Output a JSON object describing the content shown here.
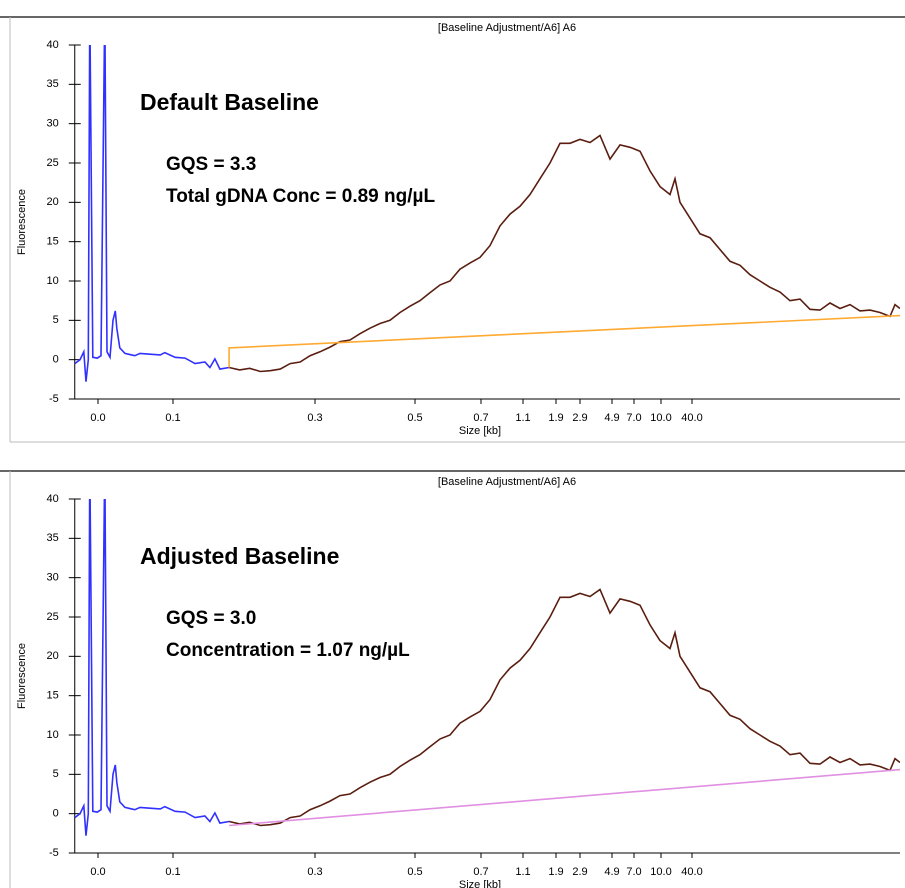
{
  "chart_data": [
    {
      "type": "line",
      "title": "[Baseline Adjustment/A6] A6",
      "xlabel": "Size [kb]",
      "ylabel": "Fluorescence",
      "annotations": [
        "Default Baseline",
        "GQS = 3.3",
        "Total gDNA Conc = 0.89 ng/µL"
      ],
      "xlim": [
        -0.031,
        241.3
      ],
      "ylim": [
        -5,
        40
      ],
      "xticks": [
        {
          "value": 0,
          "label": "0.0"
        },
        0.1,
        0.3,
        0.5,
        0.7,
        1.1,
        1.9,
        2.9,
        4.9,
        {
          "value": 7,
          "label": "7.0"
        },
        {
          "value": 10,
          "label": "10.0"
        },
        {
          "value": 40,
          "label": "40.0"
        }
      ],
      "yticks": [
        -5,
        0,
        5,
        10,
        15,
        20,
        25,
        30,
        35,
        40
      ],
      "series": [
        {
          "color": "#3030ff",
          "x": [
            -0.031,
            -0.024,
            -0.019,
            -0.016,
            -0.013,
            -0.011,
            -0.007,
            -0.001,
            0.004,
            0.009,
            0.012,
            0.016,
            0.02,
            0.023,
            0.025,
            0.029,
            0.036,
            0.049,
            0.056,
            0.069,
            0.083,
            0.089,
            0.103,
            0.117,
            0.131,
            0.145,
            0.152,
            0.159,
            0.166,
            0.179
          ],
          "values": [
            -0.5,
            0,
            1,
            -2.8,
            0,
            45,
            0.3,
            0.2,
            0.5,
            45,
            1,
            0.3,
            5,
            6.2,
            4,
            1.5,
            0.8,
            0.5,
            0.8,
            0.7,
            0.6,
            0.9,
            0.3,
            0.2,
            -0.5,
            -0.3,
            -1,
            0.1,
            -1.2,
            -1
          ]
        },
        {
          "color": "#5a1e10",
          "x": [
            0.179,
            0.194,
            0.208,
            0.223,
            0.237,
            0.251,
            0.265,
            0.279,
            0.293,
            0.31,
            0.33,
            0.35,
            0.37,
            0.39,
            0.41,
            0.43,
            0.45,
            0.47,
            0.49,
            0.515,
            0.545,
            0.576,
            0.606,
            0.636,
            0.667,
            0.697,
            0.786,
            0.881,
            0.976,
            1.071,
            1.27,
            1.512,
            1.755,
            2.067,
            2.483,
            2.9,
            3.525,
            4.15,
            4.775,
            5.664,
            6.618,
            7.667,
            8.778,
            9.889,
            18.71,
            23.55,
            28.39,
            38.06,
            47.74,
            57.42,
            67.1,
            76.77,
            86.45,
            96.13,
            105.8,
            115.5,
            125.2,
            134.8,
            144.5,
            154.2,
            163.9,
            173.5,
            183.2,
            192.9,
            202.6,
            212.3,
            221.9,
            231.6,
            236.5,
            241.3
          ],
          "values": [
            -1,
            -1.3,
            -1.1,
            -1.5,
            -1.4,
            -1.2,
            -0.5,
            -0.3,
            0.5,
            1,
            1.6,
            2.3,
            2.5,
            3.3,
            4,
            4.6,
            5,
            6,
            6.8,
            7.5,
            8.5,
            9.5,
            10,
            11.5,
            12.3,
            13,
            14.5,
            17,
            18.5,
            19.5,
            21,
            23,
            25,
            27.5,
            27.5,
            28,
            27.6,
            28.5,
            25.5,
            27.3,
            27,
            26.5,
            24,
            22,
            21,
            23,
            20,
            18,
            16,
            15.5,
            14,
            12.5,
            12,
            10.8,
            10,
            9.2,
            8.6,
            7.5,
            7.7,
            6.4,
            6.3,
            7.2,
            6.5,
            7,
            6.2,
            6.3,
            6,
            5.5,
            7,
            6.5
          ]
        },
        {
          "color": "#ffaa33",
          "x": [
            0.179,
            0.179,
            241.3
          ],
          "values": [
            -1,
            1.5,
            5.6
          ]
        }
      ]
    },
    {
      "type": "line",
      "title": "[Baseline Adjustment/A6] A6",
      "xlabel": "Size [kb]",
      "ylabel": "Fluorescence",
      "annotations": [
        "Adjusted Baseline",
        "GQS = 3.0",
        "Concentration = 1.07 ng/µL"
      ],
      "xlim": [
        -0.031,
        241.3
      ],
      "ylim": [
        -5,
        40
      ],
      "xticks": [
        {
          "value": 0,
          "label": "0.0"
        },
        0.1,
        0.3,
        0.5,
        0.7,
        1.1,
        1.9,
        2.9,
        4.9,
        {
          "value": 7,
          "label": "7.0"
        },
        {
          "value": 10,
          "label": "10.0"
        },
        {
          "value": 40,
          "label": "40.0"
        }
      ],
      "yticks": [
        -5,
        0,
        5,
        10,
        15,
        20,
        25,
        30,
        35,
        40
      ],
      "series": [
        {
          "color": "#3030ff",
          "x": [
            -0.031,
            -0.024,
            -0.019,
            -0.016,
            -0.013,
            -0.011,
            -0.007,
            -0.001,
            0.004,
            0.009,
            0.012,
            0.016,
            0.02,
            0.023,
            0.025,
            0.029,
            0.036,
            0.049,
            0.056,
            0.069,
            0.083,
            0.089,
            0.103,
            0.117,
            0.131,
            0.145,
            0.152,
            0.159,
            0.166,
            0.179
          ],
          "values": [
            -0.5,
            0,
            1,
            -2.8,
            0,
            45,
            0.3,
            0.2,
            0.5,
            45,
            1,
            0.3,
            5,
            6.2,
            4,
            1.5,
            0.8,
            0.5,
            0.8,
            0.7,
            0.6,
            0.9,
            0.3,
            0.2,
            -0.5,
            -0.3,
            -1,
            0.1,
            -1.2,
            -1
          ]
        },
        {
          "color": "#5a1e10",
          "x": [
            0.179,
            0.194,
            0.208,
            0.223,
            0.237,
            0.251,
            0.265,
            0.279,
            0.293,
            0.31,
            0.33,
            0.35,
            0.37,
            0.39,
            0.41,
            0.43,
            0.45,
            0.47,
            0.49,
            0.515,
            0.545,
            0.576,
            0.606,
            0.636,
            0.667,
            0.697,
            0.786,
            0.881,
            0.976,
            1.071,
            1.27,
            1.512,
            1.755,
            2.067,
            2.483,
            2.9,
            3.525,
            4.15,
            4.775,
            5.664,
            6.618,
            7.667,
            8.778,
            9.889,
            18.71,
            23.55,
            28.39,
            38.06,
            47.74,
            57.42,
            67.1,
            76.77,
            86.45,
            96.13,
            105.8,
            115.5,
            125.2,
            134.8,
            144.5,
            154.2,
            163.9,
            173.5,
            183.2,
            192.9,
            202.6,
            212.3,
            221.9,
            231.6,
            236.5,
            241.3
          ],
          "values": [
            -1,
            -1.3,
            -1.1,
            -1.5,
            -1.4,
            -1.2,
            -0.5,
            -0.3,
            0.5,
            1,
            1.6,
            2.3,
            2.5,
            3.3,
            4,
            4.6,
            5,
            6,
            6.8,
            7.5,
            8.5,
            9.5,
            10,
            11.5,
            12.3,
            13,
            14.5,
            17,
            18.5,
            19.5,
            21,
            23,
            25,
            27.5,
            27.5,
            28,
            27.6,
            28.5,
            25.5,
            27.3,
            27,
            26.5,
            24,
            22,
            21,
            23,
            20,
            18,
            16,
            15.5,
            14,
            12.5,
            12,
            10.8,
            10,
            9.2,
            8.6,
            7.5,
            7.7,
            6.4,
            6.3,
            7.2,
            6.5,
            7,
            6.2,
            6.3,
            6,
            5.5,
            7,
            6.5
          ]
        },
        {
          "color": "#e090e0",
          "x": [
            0.179,
            241.3
          ],
          "values": [
            -1.5,
            5.6
          ]
        }
      ]
    }
  ]
}
